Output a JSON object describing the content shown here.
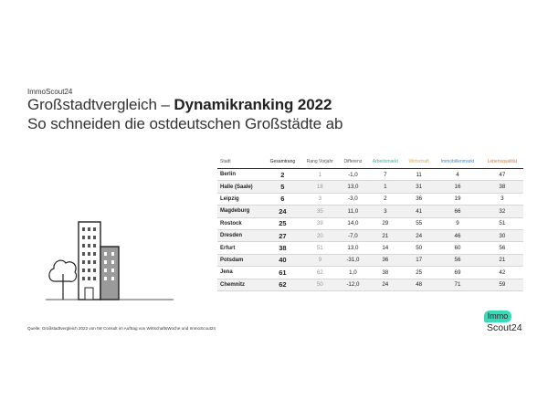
{
  "brand": "ImmoScout24",
  "title_light": "Großstadtvergleich – ",
  "title_bold": "Dynamikranking 2022",
  "subtitle": "So schneiden die ostdeutschen Großstädte ab",
  "table": {
    "headers": {
      "city": "Stadt",
      "total": "Gesamtrang",
      "prev": "Rang Vorjahr",
      "diff": "Differenz",
      "arbeit": "Arbeitsmarkt",
      "wirt": "Wirtschaft",
      "immo": "Immobilienmarkt",
      "leben": "Lebensqualität"
    },
    "rows": [
      {
        "city": "Berlin",
        "total": "2",
        "prev": "1",
        "diff": "-1,0",
        "arbeit": "7",
        "wirt": "11",
        "immo": "4",
        "leben": "47"
      },
      {
        "city": "Halle (Saale)",
        "total": "5",
        "prev": "18",
        "diff": "13,0",
        "arbeit": "1",
        "wirt": "31",
        "immo": "16",
        "leben": "38"
      },
      {
        "city": "Leipzig",
        "total": "6",
        "prev": "3",
        "diff": "-3,0",
        "arbeit": "2",
        "wirt": "36",
        "immo": "19",
        "leben": "3"
      },
      {
        "city": "Magdeburg",
        "total": "24",
        "prev": "35",
        "diff": "11,0",
        "arbeit": "3",
        "wirt": "41",
        "immo": "66",
        "leben": "32"
      },
      {
        "city": "Rostock",
        "total": "25",
        "prev": "39",
        "diff": "14,0",
        "arbeit": "29",
        "wirt": "55",
        "immo": "9",
        "leben": "51"
      },
      {
        "city": "Dresden",
        "total": "27",
        "prev": "20",
        "diff": "-7,0",
        "arbeit": "21",
        "wirt": "24",
        "immo": "46",
        "leben": "30"
      },
      {
        "city": "Erfurt",
        "total": "38",
        "prev": "51",
        "diff": "13,0",
        "arbeit": "14",
        "wirt": "50",
        "immo": "60",
        "leben": "56"
      },
      {
        "city": "Potsdam",
        "total": "40",
        "prev": "9",
        "diff": "-31,0",
        "arbeit": "36",
        "wirt": "17",
        "immo": "56",
        "leben": "21"
      },
      {
        "city": "Jena",
        "total": "61",
        "prev": "62",
        "diff": "1,0",
        "arbeit": "38",
        "wirt": "25",
        "immo": "69",
        "leben": "42"
      },
      {
        "city": "Chemnitz",
        "total": "62",
        "prev": "50",
        "diff": "-12,0",
        "arbeit": "24",
        "wirt": "48",
        "immo": "71",
        "leben": "59"
      }
    ]
  },
  "source": "Quelle: Großstadtvergleich 2022 von IW Consult im Auftrag von WirtschaftsWoche und ImmoScout24",
  "logo": {
    "top": "Immo",
    "bottom": "Scout24"
  },
  "colors": {
    "arbeitsmarkt": "#2bb7aa",
    "wirtschaft": "#f1a62e",
    "immobilienmarkt": "#3a8fd6",
    "lebensqualitaet": "#ea7a2b",
    "logo_accent": "#3ad9b8"
  }
}
